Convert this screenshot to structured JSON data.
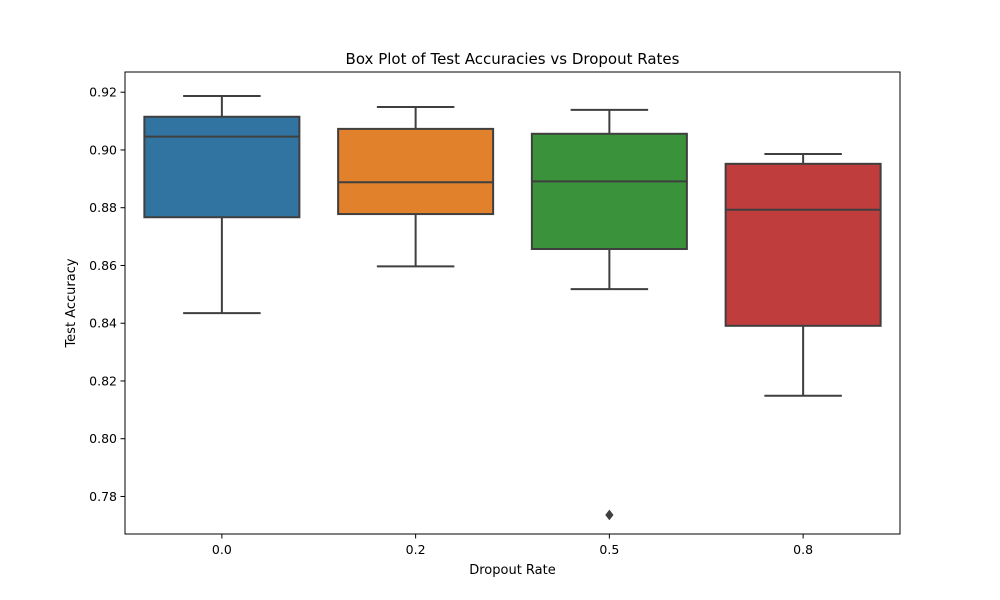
{
  "chart_data": {
    "type": "box",
    "title": "Box Plot of Test Accuracies vs Dropout Rates",
    "xlabel": "Dropout Rate",
    "ylabel": "Test Accuracy",
    "ylim": [
      0.767,
      0.927
    ],
    "yticks": [
      "0.78",
      "0.80",
      "0.82",
      "0.84",
      "0.86",
      "0.88",
      "0.90",
      "0.92"
    ],
    "grid": false,
    "legend": "none",
    "categories": [
      "0.0",
      "0.2",
      "0.5",
      "0.8"
    ],
    "boxes": [
      {
        "category": "0.0",
        "whisker_low": 0.8435,
        "q1": 0.8767,
        "median": 0.9046,
        "q3": 0.9115,
        "whisker_high": 0.9187,
        "outliers": [],
        "color": "#3274a1"
      },
      {
        "category": "0.2",
        "whisker_low": 0.8597,
        "q1": 0.8778,
        "median": 0.8888,
        "q3": 0.9073,
        "whisker_high": 0.9149,
        "outliers": [],
        "color": "#e1812c"
      },
      {
        "category": "0.5",
        "whisker_low": 0.8518,
        "q1": 0.8657,
        "median": 0.8891,
        "q3": 0.9056,
        "whisker_high": 0.9139,
        "outliers": [
          0.7736
        ],
        "color": "#3a923a"
      },
      {
        "category": "0.8",
        "whisker_low": 0.8149,
        "q1": 0.8391,
        "median": 0.8793,
        "q3": 0.8952,
        "whisker_high": 0.8986,
        "outliers": [],
        "color": "#c03d3e"
      }
    ]
  }
}
